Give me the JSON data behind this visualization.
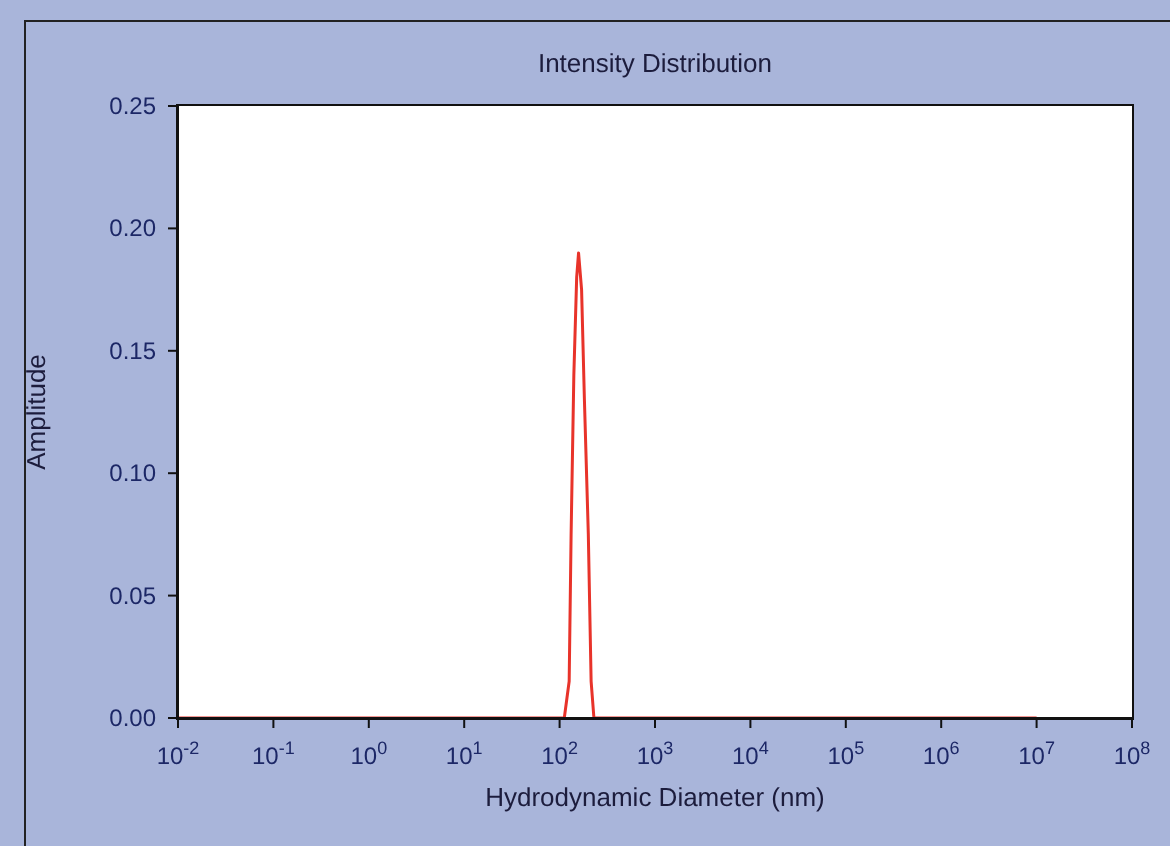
{
  "chart_data": {
    "type": "line",
    "title": "Intensity Distribution",
    "xlabel": "Hydrodynamic Diameter (nm)",
    "ylabel": "Amplitude",
    "x": [
      0.01,
      112,
      126,
      132,
      141,
      151,
      158,
      170,
      182,
      200,
      214,
      229,
      10000000
    ],
    "values": [
      0,
      0,
      0.015,
      0.075,
      0.14,
      0.18,
      0.19,
      0.175,
      0.13,
      0.075,
      0.015,
      0,
      0
    ],
    "color": "#e8332a",
    "marker": "none",
    "line_style": "solid",
    "log": "x",
    "grid": false,
    "xlim": [
      0.01,
      100000000
    ],
    "xticks": [
      {
        "value": 0.01,
        "label": "10$^{-2}$"
      },
      {
        "value": 0.1,
        "label": "10$^{-1}$"
      },
      {
        "value": 1,
        "label": "10$^{0}$"
      },
      {
        "value": 10,
        "label": "10$^{1}$"
      },
      {
        "value": 100,
        "label": "10$^{2}$"
      },
      {
        "value": 1000,
        "label": "10$^{3}$"
      },
      {
        "value": 10000,
        "label": "10$^{4}$"
      },
      {
        "value": 100000,
        "label": "10$^{5}$"
      },
      {
        "value": 1000000,
        "label": "10$^{6}$"
      },
      {
        "value": 10000000,
        "label": "10$^{7}$"
      },
      {
        "value": 100000000,
        "label": "10$^{8}$"
      }
    ],
    "ylim": [
      0,
      0.25
    ],
    "yticks": [
      {
        "value": 0,
        "label": "0.00"
      },
      {
        "value": 0.05,
        "label": "0.05"
      },
      {
        "value": 0.1,
        "label": "0.10"
      },
      {
        "value": 0.15,
        "label": "0.15"
      },
      {
        "value": 0.2,
        "label": "0.20"
      },
      {
        "value": 0.25,
        "label": "0.25"
      }
    ]
  }
}
